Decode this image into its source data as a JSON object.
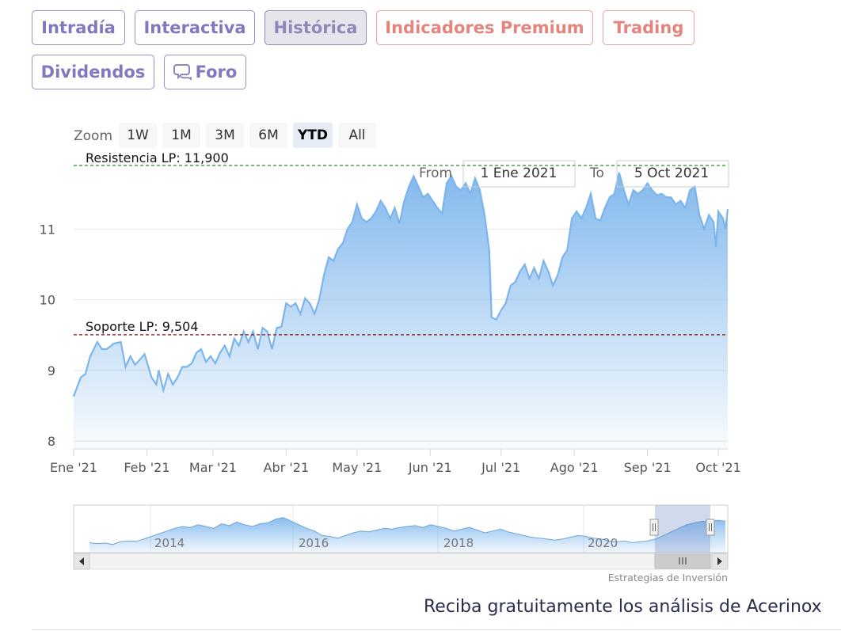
{
  "tabs": [
    {
      "label": "Intradía",
      "style": "normal"
    },
    {
      "label": "Interactiva",
      "style": "normal"
    },
    {
      "label": "Histórica",
      "style": "active"
    },
    {
      "label": "Indicadores Premium",
      "style": "premium"
    },
    {
      "label": "Trading",
      "style": "premium"
    },
    {
      "label": "Dividendos",
      "style": "normal"
    },
    {
      "label": "Foro",
      "style": "normal",
      "icon": "chat-bubble-icon"
    }
  ],
  "zoom": {
    "label": "Zoom",
    "buttons": [
      "1W",
      "1M",
      "3M",
      "6M",
      "YTD",
      "All"
    ],
    "selected": "YTD"
  },
  "range": {
    "from_label": "From",
    "from_value": "1 Ene 2021",
    "to_label": "To",
    "to_value": "5 Oct 2021"
  },
  "lines": {
    "resistance_label": "Resistencia LP: 11,900",
    "resistance_value": 11.9,
    "resistance_color": "#2e8b2e",
    "support_label": "Soporte LP: 9,504",
    "support_value": 9.504,
    "support_color": "#8b1a1a"
  },
  "credit": "Estrategias de Inversión",
  "footer_text": "Reciba gratuitamente los análisis de Acerinox",
  "colors": {
    "series": "#7cb5ec",
    "tab_text": "#8179c0",
    "premium_text": "#e4847c",
    "footer_text": "#2b2d4f"
  },
  "chart_data": {
    "type": "area",
    "title": "",
    "xlabel": "",
    "ylabel": "",
    "ylim": [
      7.9,
      11.9
    ],
    "yticks": [
      8,
      9,
      10,
      11
    ],
    "xlim": [
      "2021-01-01",
      "2021-10-05"
    ],
    "xticks": [
      {
        "date": "2021-01-01",
        "label": "Ene '21"
      },
      {
        "date": "2021-02-01",
        "label": "Feb '21"
      },
      {
        "date": "2021-03-01",
        "label": "Mar '21"
      },
      {
        "date": "2021-04-01",
        "label": "Abr '21"
      },
      {
        "date": "2021-05-01",
        "label": "May '21"
      },
      {
        "date": "2021-06-01",
        "label": "Jun '21"
      },
      {
        "date": "2021-07-01",
        "label": "Jul '21"
      },
      {
        "date": "2021-08-01",
        "label": "Ago '21"
      },
      {
        "date": "2021-09-01",
        "label": "Sep '21"
      },
      {
        "date": "2021-10-01",
        "label": "Oct '21"
      }
    ],
    "series": [
      {
        "points": [
          [
            "2021-01-01",
            8.63
          ],
          [
            "2021-01-04",
            8.9
          ],
          [
            "2021-01-06",
            8.95
          ],
          [
            "2021-01-08",
            9.2
          ],
          [
            "2021-01-11",
            9.4
          ],
          [
            "2021-01-13",
            9.3
          ],
          [
            "2021-01-15",
            9.3
          ],
          [
            "2021-01-18",
            9.38
          ],
          [
            "2021-01-21",
            9.4
          ],
          [
            "2021-01-23",
            9.05
          ],
          [
            "2021-01-25",
            9.2
          ],
          [
            "2021-01-27",
            9.08
          ],
          [
            "2021-01-29",
            9.15
          ],
          [
            "2021-01-31",
            9.23
          ],
          [
            "2021-02-03",
            8.9
          ],
          [
            "2021-02-05",
            8.8
          ],
          [
            "2021-02-06",
            9.0
          ],
          [
            "2021-02-08",
            8.72
          ],
          [
            "2021-02-10",
            8.95
          ],
          [
            "2021-02-12",
            8.8
          ],
          [
            "2021-02-14",
            8.9
          ],
          [
            "2021-02-16",
            9.05
          ],
          [
            "2021-02-18",
            9.05
          ],
          [
            "2021-02-20",
            9.1
          ],
          [
            "2021-02-22",
            9.25
          ],
          [
            "2021-02-24",
            9.3
          ],
          [
            "2021-02-26",
            9.12
          ],
          [
            "2021-02-28",
            9.2
          ],
          [
            "2021-03-02",
            9.1
          ],
          [
            "2021-03-04",
            9.25
          ],
          [
            "2021-03-06",
            9.35
          ],
          [
            "2021-03-08",
            9.2
          ],
          [
            "2021-03-10",
            9.45
          ],
          [
            "2021-03-12",
            9.35
          ],
          [
            "2021-03-14",
            9.55
          ],
          [
            "2021-03-16",
            9.4
          ],
          [
            "2021-03-18",
            9.55
          ],
          [
            "2021-03-20",
            9.3
          ],
          [
            "2021-03-22",
            9.6
          ],
          [
            "2021-03-24",
            9.55
          ],
          [
            "2021-03-26",
            9.3
          ],
          [
            "2021-03-28",
            9.6
          ],
          [
            "2021-03-30",
            9.62
          ],
          [
            "2021-04-01",
            9.95
          ],
          [
            "2021-04-03",
            9.9
          ],
          [
            "2021-04-05",
            9.95
          ],
          [
            "2021-04-07",
            9.8
          ],
          [
            "2021-04-09",
            10.02
          ],
          [
            "2021-04-11",
            9.95
          ],
          [
            "2021-04-13",
            9.8
          ],
          [
            "2021-04-15",
            10.0
          ],
          [
            "2021-04-17",
            10.35
          ],
          [
            "2021-04-19",
            10.6
          ],
          [
            "2021-04-21",
            10.55
          ],
          [
            "2021-04-23",
            10.72
          ],
          [
            "2021-04-25",
            10.8
          ],
          [
            "2021-04-27",
            11.0
          ],
          [
            "2021-04-29",
            11.1
          ],
          [
            "2021-05-01",
            11.35
          ],
          [
            "2021-05-03",
            11.15
          ],
          [
            "2021-05-05",
            11.1
          ],
          [
            "2021-05-07",
            11.15
          ],
          [
            "2021-05-09",
            11.25
          ],
          [
            "2021-05-11",
            11.4
          ],
          [
            "2021-05-13",
            11.3
          ],
          [
            "2021-05-15",
            11.15
          ],
          [
            "2021-05-17",
            11.3
          ],
          [
            "2021-05-19",
            11.08
          ],
          [
            "2021-05-21",
            11.4
          ],
          [
            "2021-05-23",
            11.6
          ],
          [
            "2021-05-25",
            11.75
          ],
          [
            "2021-05-27",
            11.6
          ],
          [
            "2021-05-29",
            11.45
          ],
          [
            "2021-05-31",
            11.5
          ],
          [
            "2021-06-02",
            11.4
          ],
          [
            "2021-06-04",
            11.3
          ],
          [
            "2021-06-06",
            11.22
          ],
          [
            "2021-06-08",
            11.65
          ],
          [
            "2021-06-10",
            11.75
          ],
          [
            "2021-06-12",
            11.6
          ],
          [
            "2021-06-14",
            11.55
          ],
          [
            "2021-06-16",
            11.65
          ],
          [
            "2021-06-18",
            11.5
          ],
          [
            "2021-06-20",
            11.72
          ],
          [
            "2021-06-22",
            11.55
          ],
          [
            "2021-06-24",
            11.2
          ],
          [
            "2021-06-26",
            10.7
          ],
          [
            "2021-06-27",
            9.75
          ],
          [
            "2021-06-29",
            9.72
          ],
          [
            "2021-07-01",
            9.85
          ],
          [
            "2021-07-03",
            9.95
          ],
          [
            "2021-07-05",
            10.2
          ],
          [
            "2021-07-07",
            10.25
          ],
          [
            "2021-07-09",
            10.4
          ],
          [
            "2021-07-11",
            10.5
          ],
          [
            "2021-07-13",
            10.3
          ],
          [
            "2021-07-15",
            10.45
          ],
          [
            "2021-07-17",
            10.3
          ],
          [
            "2021-07-19",
            10.55
          ],
          [
            "2021-07-21",
            10.4
          ],
          [
            "2021-07-23",
            10.2
          ],
          [
            "2021-07-25",
            10.35
          ],
          [
            "2021-07-27",
            10.6
          ],
          [
            "2021-07-29",
            10.7
          ],
          [
            "2021-07-31",
            11.15
          ],
          [
            "2021-08-02",
            11.25
          ],
          [
            "2021-08-04",
            11.15
          ],
          [
            "2021-08-06",
            11.3
          ],
          [
            "2021-08-08",
            11.5
          ],
          [
            "2021-08-10",
            11.15
          ],
          [
            "2021-08-12",
            11.12
          ],
          [
            "2021-08-14",
            11.3
          ],
          [
            "2021-08-16",
            11.45
          ],
          [
            "2021-08-18",
            11.5
          ],
          [
            "2021-08-20",
            11.8
          ],
          [
            "2021-08-22",
            11.55
          ],
          [
            "2021-08-24",
            11.35
          ],
          [
            "2021-08-26",
            11.55
          ],
          [
            "2021-08-28",
            11.5
          ],
          [
            "2021-08-30",
            11.55
          ],
          [
            "2021-09-01",
            11.65
          ],
          [
            "2021-09-03",
            11.55
          ],
          [
            "2021-09-05",
            11.48
          ],
          [
            "2021-09-07",
            11.5
          ],
          [
            "2021-09-09",
            11.45
          ],
          [
            "2021-09-11",
            11.45
          ],
          [
            "2021-09-13",
            11.35
          ],
          [
            "2021-09-15",
            11.4
          ],
          [
            "2021-09-17",
            11.3
          ],
          [
            "2021-09-19",
            11.55
          ],
          [
            "2021-09-21",
            11.6
          ],
          [
            "2021-09-23",
            11.2
          ],
          [
            "2021-09-25",
            11.0
          ],
          [
            "2021-09-27",
            11.2
          ],
          [
            "2021-09-29",
            11.1
          ],
          [
            "2021-09-30",
            10.75
          ],
          [
            "2021-10-01",
            11.25
          ],
          [
            "2021-10-03",
            11.15
          ],
          [
            "2021-10-04",
            11.0
          ],
          [
            "2021-10-05",
            11.28
          ]
        ]
      }
    ]
  },
  "navigator": {
    "year_labels": [
      "2014",
      "2016",
      "2018",
      "2020"
    ],
    "selected_range": [
      "2021-01-01",
      "2021-10-05"
    ],
    "values": [
      8.2,
      8.1,
      8.15,
      8.0,
      8.3,
      8.4,
      8.35,
      8.6,
      8.9,
      9.2,
      9.5,
      9.8,
      10.0,
      9.9,
      10.2,
      10.0,
      9.8,
      10.3,
      10.1,
      10.5,
      10.2,
      10.0,
      10.3,
      10.4,
      10.8,
      11.0,
      10.6,
      10.2,
      9.8,
      9.5,
      9.0,
      8.9,
      8.7,
      9.0,
      9.3,
      9.5,
      9.4,
      9.6,
      9.8,
      9.7,
      9.9,
      10.0,
      10.1,
      9.9,
      10.2,
      10.0,
      9.8,
      9.5,
      9.7,
      9.9,
      9.6,
      9.3,
      9.5,
      9.7,
      9.4,
      9.2,
      9.0,
      8.8,
      8.7,
      8.6,
      8.5,
      8.6,
      8.8,
      9.0,
      8.9,
      8.7,
      8.6,
      8.4,
      8.3,
      8.4,
      8.2,
      8.3,
      8.4,
      8.6,
      9.0,
      9.4,
      9.8,
      10.2,
      10.4,
      10.6,
      10.5,
      10.7,
      10.6
    ]
  }
}
